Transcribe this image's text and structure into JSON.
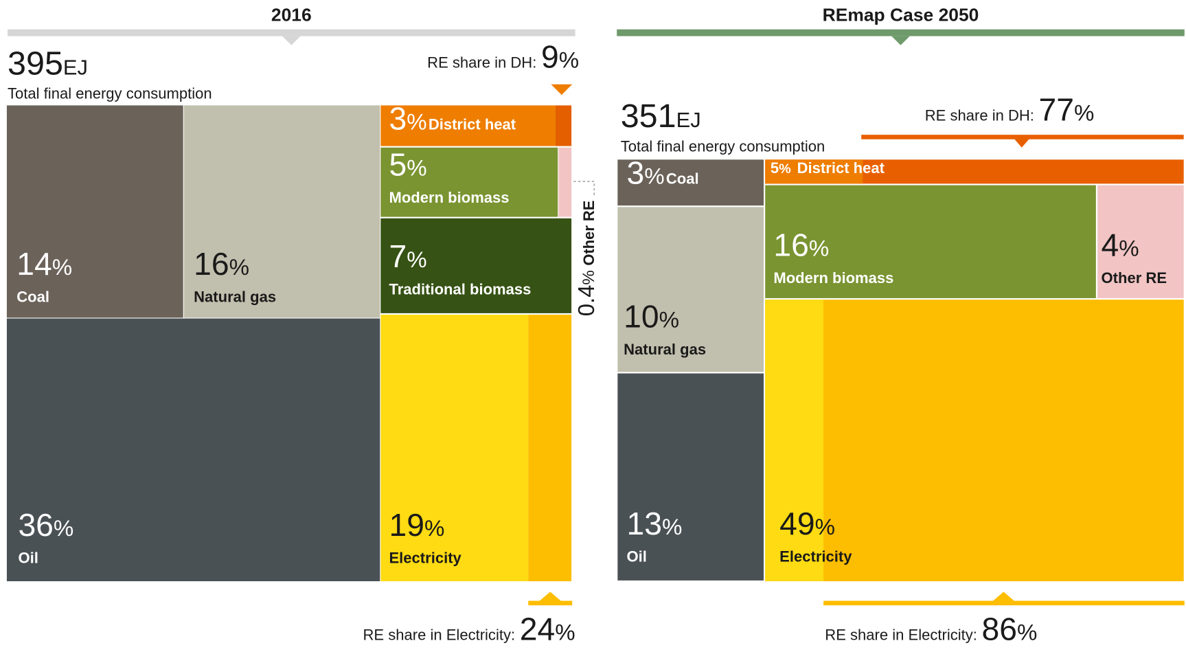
{
  "chart_data": [
    {
      "type": "treemap",
      "title": "2016",
      "total": 395,
      "total_unit": "EJ",
      "total_label": "Total final energy consumption",
      "unit": "%",
      "categories": [
        "Coal",
        "Natural gas",
        "Oil",
        "District heat",
        "Modern biomass",
        "Traditional biomass",
        "Electricity",
        "Other RE"
      ],
      "values": [
        14,
        16,
        36,
        3,
        5,
        7,
        19,
        0.4
      ],
      "colors": [
        "#6b6259",
        "#c1bfad",
        "#4a5155",
        "#ee7d00",
        "#7a9431",
        "#365214",
        "#fedb12",
        "#f2c4c4"
      ],
      "annotations": [
        {
          "label": "RE share in DH:",
          "value": 9,
          "color": "#e35f00"
        },
        {
          "label": "RE share in Electricity:",
          "value": 24,
          "color": "#fdbd00"
        }
      ],
      "bar_color": "#d6d6d6"
    },
    {
      "type": "treemap",
      "title": "REmap Case 2050",
      "total": 351,
      "total_unit": "EJ",
      "total_label": "Total final energy consumption",
      "unit": "%",
      "categories": [
        "Coal",
        "Natural gas",
        "Oil",
        "District heat",
        "Modern biomass",
        "Other RE",
        "Electricity"
      ],
      "values": [
        3,
        10,
        13,
        5,
        16,
        4,
        49
      ],
      "colors": [
        "#6b6259",
        "#c1bfad",
        "#4a5155",
        "#e85f00",
        "#7a9431",
        "#f2c4c4",
        "#fdbd00"
      ],
      "annotations": [
        {
          "label": "RE share in DH:",
          "value": 77,
          "color": "#ee7d00"
        },
        {
          "label": "RE share in Electricity:",
          "value": 86,
          "color": "#fedb12"
        }
      ],
      "bar_color": "#6f9a6b"
    }
  ]
}
